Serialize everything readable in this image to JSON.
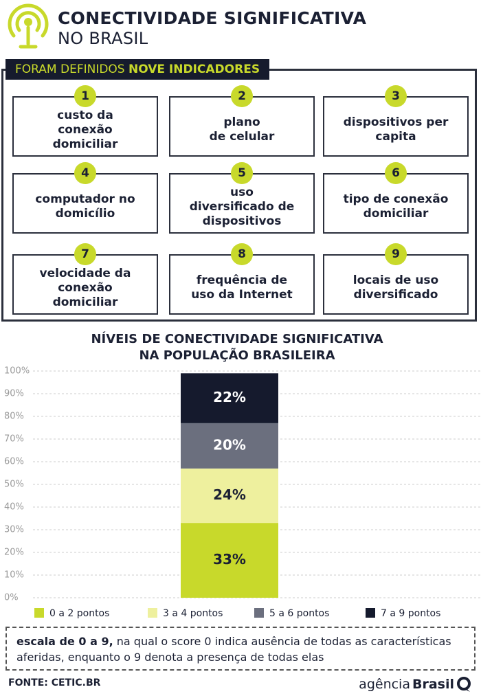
{
  "header": {
    "title": "CONECTIVIDADE SIGNIFICATIVA",
    "subtitle": "NO BRASIL"
  },
  "banner": {
    "text": "FORAM DEFINIDOS ",
    "highlight": "NOVE INDICADORES"
  },
  "indicators": [
    {
      "number": 1,
      "label": "custo da\nconexão\ndomiciliar"
    },
    {
      "number": 2,
      "label": "plano\nde celular"
    },
    {
      "number": 3,
      "label": "dispositivos per\ncapita"
    },
    {
      "number": 4,
      "label": "computador no\ndomicílio"
    },
    {
      "number": 5,
      "label": "uso\ndiversificado de\ndispositivos"
    },
    {
      "number": 6,
      "label": "tipo de conexão\ndomiciliar"
    },
    {
      "number": 7,
      "label": "velocidade da\nconexão\ndomiciliar"
    },
    {
      "number": 8,
      "label": "frequência de\nuso da Internet"
    },
    {
      "number": 9,
      "label": "locais de uso\ndiversificado"
    }
  ],
  "chart_data": {
    "type": "stacked-bar",
    "title": "NÍVEIS DE CONECTIVIDADE SIGNIFICATIVA\nNA POPULAÇÃO BRASILEIRA",
    "categories": [
      null
    ],
    "series": [
      {
        "name": "0 a 2 pontos",
        "color": "#c8d92b",
        "values": [
          33
        ],
        "value_labels": [
          "33%"
        ]
      },
      {
        "name": "3 a 4 pontos",
        "color": "#eef09e",
        "values": [
          24
        ],
        "value_labels": [
          "24%"
        ]
      },
      {
        "name": "5 a 6 pontos",
        "color": "#6b6f7e",
        "values": [
          20
        ],
        "value_labels": [
          "20%"
        ]
      },
      {
        "name": "7 a 9 pontos",
        "color": "#151a2d",
        "values": [
          22
        ],
        "value_labels": [
          "22%"
        ]
      }
    ],
    "ylim": [
      0,
      100
    ],
    "yticks": [
      {
        "value": 0,
        "label": "0%"
      },
      {
        "value": 10,
        "label": "10%"
      },
      {
        "value": 20,
        "label": "20%"
      },
      {
        "value": 30,
        "label": "30%"
      },
      {
        "value": 40,
        "label": "40%"
      },
      {
        "value": 50,
        "label": "50%"
      },
      {
        "value": 60,
        "label": "60%"
      },
      {
        "value": 70,
        "label": "70%"
      },
      {
        "value": 80,
        "label": "80%"
      },
      {
        "value": 90,
        "label": "90%"
      },
      {
        "value": 100,
        "label": "100%"
      }
    ],
    "grid": true
  },
  "note": {
    "bold": "escala de 0 a 9,",
    "text": "na qual o score 0 indica ausência de todas as características aferidas, enquanto o 9 denota a presença de todas elas"
  },
  "source": "FONTE: CETIC.BR",
  "logo": {
    "light": "agência",
    "bold": "Brasil"
  }
}
